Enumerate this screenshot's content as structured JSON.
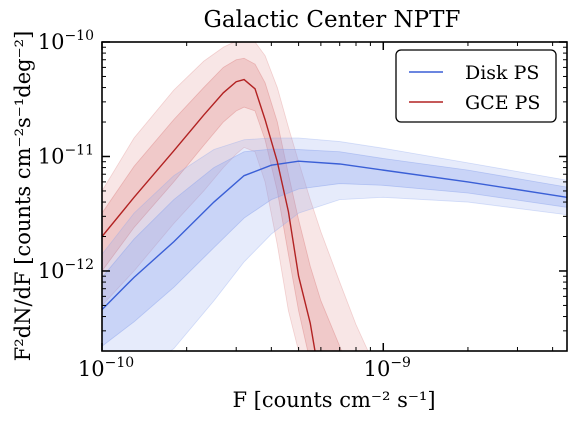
{
  "chart_data": {
    "type": "line",
    "title": "Galactic Center NPTF",
    "xlabel": "F [counts cm⁻² s⁻¹]",
    "ylabel": "F²dN/dF [counts cm⁻²s⁻¹deg⁻²]",
    "xscale": "log",
    "yscale": "log",
    "xlim": [
      1e-10,
      4.5e-09
    ],
    "ylim": [
      2e-13,
      1e-10
    ],
    "grid": false,
    "legend_position": "top-right",
    "x_ticks": [
      {
        "value": 1e-10,
        "base": "10",
        "exp": "−10"
      },
      {
        "value": 1e-09,
        "base": "10",
        "exp": "−9"
      }
    ],
    "y_ticks": [
      {
        "value": 1e-10,
        "base": "10",
        "exp": "−10"
      },
      {
        "value": 1e-11,
        "base": "10",
        "exp": "−11"
      },
      {
        "value": 1e-12,
        "base": "10",
        "exp": "−12"
      }
    ],
    "series": [
      {
        "name": "Disk PS",
        "color": "#3a5fd6",
        "band_color": "#8da6ee",
        "x": [
          1e-10,
          1.3e-10,
          1.8e-10,
          2.5e-10,
          3.2e-10,
          4e-10,
          5e-10,
          7e-10,
          1e-09,
          2e-09,
          4.5e-09
        ],
        "median": [
          4.6e-13,
          8.8e-13,
          1.8e-12,
          4e-12,
          6.8e-12,
          8.4e-12,
          9.1e-12,
          8.6e-12,
          7.6e-12,
          6e-12,
          4.4e-12
        ],
        "band_68": {
          "lower": [
            2.2e-13,
            3.6e-13,
            7.2e-13,
            1.6e-12,
            2.9e-12,
            4.2e-12,
            5.2e-12,
            5.8e-12,
            5.6e-12,
            4.8e-12,
            3.6e-12
          ],
          "upper": [
            8.8e-13,
            1.9e-12,
            4.2e-12,
            8e-12,
            1.1e-11,
            1.16e-11,
            1.15e-11,
            1.1e-11,
            9.6e-12,
            7.6e-12,
            5.4e-12
          ]
        },
        "band_95": {
          "lower": [
            1.2e-13,
            1.2e-13,
            2.1e-13,
            5.5e-13,
            1.2e-12,
            2.1e-12,
            3.2e-12,
            4.2e-12,
            4.4e-12,
            4e-12,
            3.1e-12
          ],
          "upper": [
            1.4e-12,
            3.2e-12,
            6.8e-12,
            1.15e-11,
            1.4e-11,
            1.45e-11,
            1.45e-11,
            1.35e-11,
            1.18e-11,
            8.8e-12,
            6.2e-12
          ]
        }
      },
      {
        "name": "GCE PS",
        "color": "#b22222",
        "band_color": "#e08c8c",
        "x": [
          1e-10,
          1.3e-10,
          1.8e-10,
          2.3e-10,
          2.7e-10,
          3e-10,
          3.2e-10,
          3.5e-10,
          3.8e-10,
          4.2e-10,
          4.6e-10,
          5e-10,
          5.5e-10,
          6e-10,
          7e-10,
          8e-10,
          9e-10
        ],
        "median": [
          2e-12,
          4.4e-12,
          1.12e-11,
          2.3e-11,
          3.6e-11,
          4.5e-11,
          4.7e-11,
          3.9e-11,
          2.1e-11,
          9e-12,
          3.3e-12,
          9e-13,
          3.5e-13,
          1e-13,
          null,
          null,
          null
        ],
        "band_68": {
          "lower": [
            1e-12,
            2.4e-12,
            6e-12,
            1.25e-11,
            2e-11,
            2.5e-11,
            2.7e-11,
            2.5e-11,
            1.4e-11,
            5e-12,
            1.4e-12,
            4.5e-13,
            1.6e-13,
            1e-13,
            1e-13,
            1e-13,
            1e-13
          ],
          "upper": [
            3.2e-12,
            8.2e-12,
            2.1e-11,
            4e-11,
            6e-11,
            7e-11,
            7.2e-11,
            6.4e-11,
            4.4e-11,
            2e-11,
            7e-12,
            2.8e-12,
            1.1e-12,
            5.5e-13,
            2.2e-13,
            1e-13,
            1e-13
          ]
        },
        "band_95": {
          "lower": [
            5e-13,
            1e-12,
            2.6e-12,
            5e-12,
            8e-12,
            1.05e-11,
            1.2e-11,
            1.1e-11,
            6e-12,
            1.7e-12,
            4.5e-13,
            2e-13,
            1e-13,
            1e-13,
            1e-13,
            1e-13,
            1e-13
          ],
          "upper": [
            5e-12,
            1.45e-11,
            3.8e-11,
            6.8e-11,
            9e-11,
            1.02e-10,
            1.05e-10,
            1e-10,
            7.6e-11,
            4e-11,
            1.8e-11,
            9e-12,
            4.2e-12,
            2.2e-12,
            8e-13,
            3.4e-13,
            1.8e-13
          ]
        }
      }
    ]
  }
}
